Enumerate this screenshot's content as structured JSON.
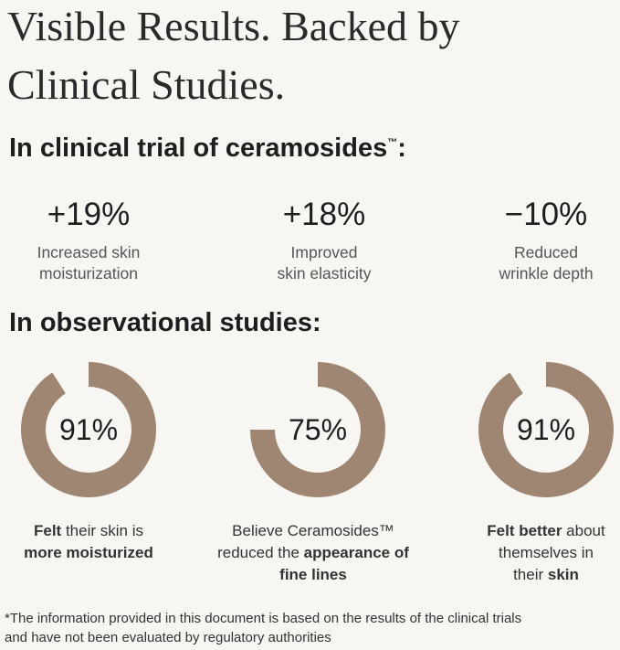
{
  "title": [
    "Visible Results. Backed by",
    "Clinical Studies."
  ],
  "section1": {
    "heading": {
      "text": "In clinical trial of ceramosides",
      "mark": "™",
      "end": ":"
    },
    "stats": [
      {
        "value": "+19%",
        "label": [
          "Increased skin",
          "moisturization"
        ]
      },
      {
        "value": "+18%",
        "label": [
          "Improved",
          "skin elasticity"
        ]
      },
      {
        "value": "−10%",
        "label": [
          "Reduced",
          "wrinkle depth"
        ]
      }
    ]
  },
  "section2": {
    "heading": "In observational studies:",
    "color": "#9f8672",
    "donuts": [
      {
        "value": 91,
        "label": "91%",
        "caption": [
          [
            {
              "text": "Felt",
              "bold": true
            },
            {
              "text": " their skin is",
              "bold": false
            }
          ],
          [
            {
              "text": "more moisturized",
              "bold": true
            }
          ]
        ]
      },
      {
        "value": 75,
        "label": "75%",
        "caption": [
          [
            {
              "text": "Believe Ceramosides™",
              "bold": false
            }
          ],
          [
            {
              "text": "reduced the ",
              "bold": false
            },
            {
              "text": "appearance of",
              "bold": true
            }
          ],
          [
            {
              "text": "fine lines",
              "bold": true
            }
          ]
        ]
      },
      {
        "value": 91,
        "label": "91%",
        "caption": [
          [
            {
              "text": "Felt better",
              "bold": true
            },
            {
              "text": " about",
              "bold": false
            }
          ],
          [
            {
              "text": "themselves in",
              "bold": false
            }
          ],
          [
            {
              "text": "their ",
              "bold": false
            },
            {
              "text": "skin",
              "bold": true
            }
          ]
        ]
      }
    ]
  },
  "footnote": [
    "*The information provided in this document is based on the results of the clinical trials",
    "and have not been evaluated by regulatory authorities"
  ]
}
